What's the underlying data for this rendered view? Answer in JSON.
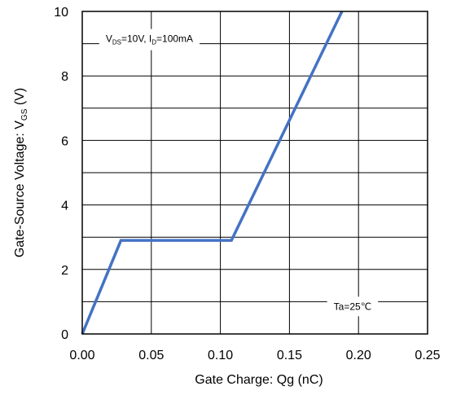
{
  "chart_data": {
    "type": "line",
    "xlabel": "Gate Charge: Qg (nC)",
    "ylabel": {
      "text": "Gate-Source Voltage: V",
      "sub": "GS",
      "suffix": " (V)"
    },
    "xlim": [
      0,
      0.25
    ],
    "ylim": [
      0,
      10
    ],
    "x_ticks": [
      0.0,
      0.05,
      0.1,
      0.15,
      0.2,
      0.25
    ],
    "x_tick_labels": [
      "0.00",
      "0.05",
      "0.10",
      "0.15",
      "0.20",
      "0.25"
    ],
    "y_ticks": [
      0,
      2,
      4,
      6,
      8,
      10
    ],
    "y_tick_labels": [
      "0",
      "2",
      "4",
      "6",
      "8",
      "10"
    ],
    "grid": true,
    "x_gridlines": [
      0.05,
      0.1,
      0.15,
      0.2
    ],
    "y_gridlines": [
      1,
      2,
      3,
      4,
      5,
      6,
      7,
      8,
      9
    ],
    "series": [
      {
        "color": "#4472c4",
        "points": [
          [
            0.0,
            0.0
          ],
          [
            0.028,
            2.9
          ],
          [
            0.108,
            2.9
          ],
          [
            0.188,
            10.0
          ]
        ]
      }
    ],
    "annotations": [
      {
        "id": "conditions",
        "parts": [
          {
            "t": "V"
          },
          {
            "t": "DS",
            "sub": true
          },
          {
            "t": "=10V, I"
          },
          {
            "t": "D",
            "sub": true
          },
          {
            "t": "=100mA"
          }
        ],
        "x": 0.017,
        "y": 9.05
      },
      {
        "id": "temperature",
        "parts": [
          {
            "t": "Ta=25℃"
          }
        ],
        "x": 0.182,
        "y": 0.75
      }
    ]
  }
}
